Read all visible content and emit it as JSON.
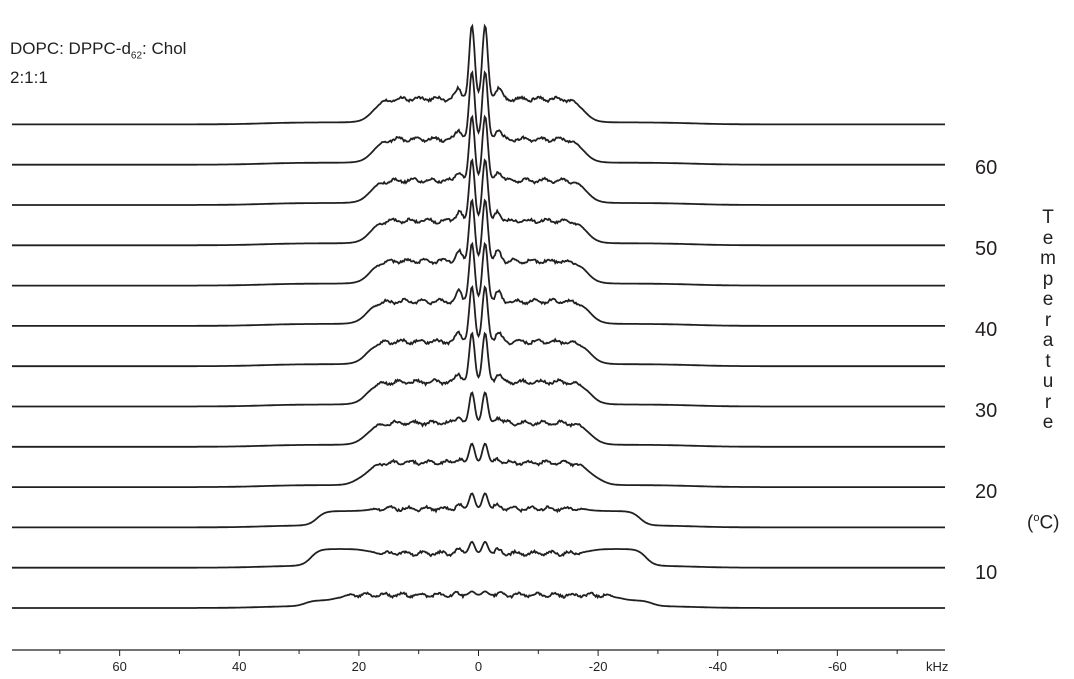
{
  "chart_data": {
    "type": "line",
    "title_lines": [
      "DOPC: DPPC-d",
      "62",
      ": Chol",
      "2:1:1"
    ],
    "xlabel": "kHz",
    "x_direction": "reversed",
    "xlim": [
      78,
      -78
    ],
    "x_ticks": [
      60,
      40,
      20,
      0,
      -20,
      -40,
      -60
    ],
    "x_tick_labels": [
      "60",
      "40",
      "20",
      "0",
      "-20",
      "-40",
      "-60"
    ],
    "y_axis_title": "Temperature",
    "y_axis_unit": "(°C)",
    "y_axis_unit_parts": [
      "(",
      "o",
      "C)"
    ],
    "y_tick_labels": [
      "60",
      "50",
      "40",
      "30",
      "20",
      "10"
    ],
    "grid": false,
    "stack_order": "bottom-to-top",
    "series_count": 13,
    "series": [
      {
        "index": 1,
        "center_peak": 0.12,
        "inner_peak": 0.08,
        "shoulder_khz": 29,
        "plateau_khz": 22,
        "plateau_height": 0.38,
        "shoulder_height": 0.22
      },
      {
        "index": 2,
        "center_peak": 0.38,
        "inner_peak": 0.25,
        "shoulder_khz": 28,
        "plateau_khz": 17,
        "plateau_height": 0.42,
        "shoulder_height": 0.55
      },
      {
        "index": 3,
        "center_peak": 0.5,
        "inner_peak": 0.3,
        "shoulder_khz": 27,
        "plateau_khz": 17,
        "plateau_height": 0.55,
        "shoulder_height": 0.48
      },
      {
        "index": 4,
        "center_peak": 0.62,
        "inner_peak": 0.34,
        "shoulder_khz": 21,
        "plateau_khz": 17,
        "plateau_height": 0.72,
        "shoulder_height": 0.2
      },
      {
        "index": 5,
        "center_peak": 1.0,
        "inner_peak": 0.55,
        "shoulder_khz": 20,
        "plateau_khz": 17,
        "plateau_height": 0.7,
        "shoulder_height": 0.12
      },
      {
        "index": 6,
        "center_peak": 1.6,
        "inner_peak": 0.7,
        "shoulder_khz": 19,
        "plateau_khz": 17,
        "plateau_height": 0.72,
        "shoulder_height": 0.1
      },
      {
        "index": 7,
        "center_peak": 1.8,
        "inner_peak": 0.75,
        "shoulder_khz": 19,
        "plateau_khz": 17,
        "plateau_height": 0.72,
        "shoulder_height": 0.1
      },
      {
        "index": 8,
        "center_peak": 1.9,
        "inner_peak": 0.78,
        "shoulder_khz": 19,
        "plateau_khz": 17,
        "plateau_height": 0.72,
        "shoulder_height": 0.1
      },
      {
        "index": 9,
        "center_peak": 2.0,
        "inner_peak": 0.8,
        "shoulder_khz": 18,
        "plateau_khz": 16.5,
        "plateau_height": 0.72,
        "shoulder_height": 0.1
      },
      {
        "index": 10,
        "center_peak": 2.0,
        "inner_peak": 0.8,
        "shoulder_khz": 18,
        "plateau_khz": 16.5,
        "plateau_height": 0.72,
        "shoulder_height": 0.1
      },
      {
        "index": 11,
        "center_peak": 2.1,
        "inner_peak": 0.82,
        "shoulder_khz": 18,
        "plateau_khz": 16.5,
        "plateau_height": 0.72,
        "shoulder_height": 0.1
      },
      {
        "index": 12,
        "center_peak": 2.2,
        "inner_peak": 0.85,
        "shoulder_khz": 18,
        "plateau_khz": 16,
        "plateau_height": 0.75,
        "shoulder_height": 0.1
      },
      {
        "index": 13,
        "center_peak": 2.4,
        "inner_peak": 0.88,
        "shoulder_khz": 18,
        "plateau_khz": 16,
        "plateau_height": 0.75,
        "shoulder_height": 0.1
      }
    ],
    "line_color": "#231f20"
  }
}
